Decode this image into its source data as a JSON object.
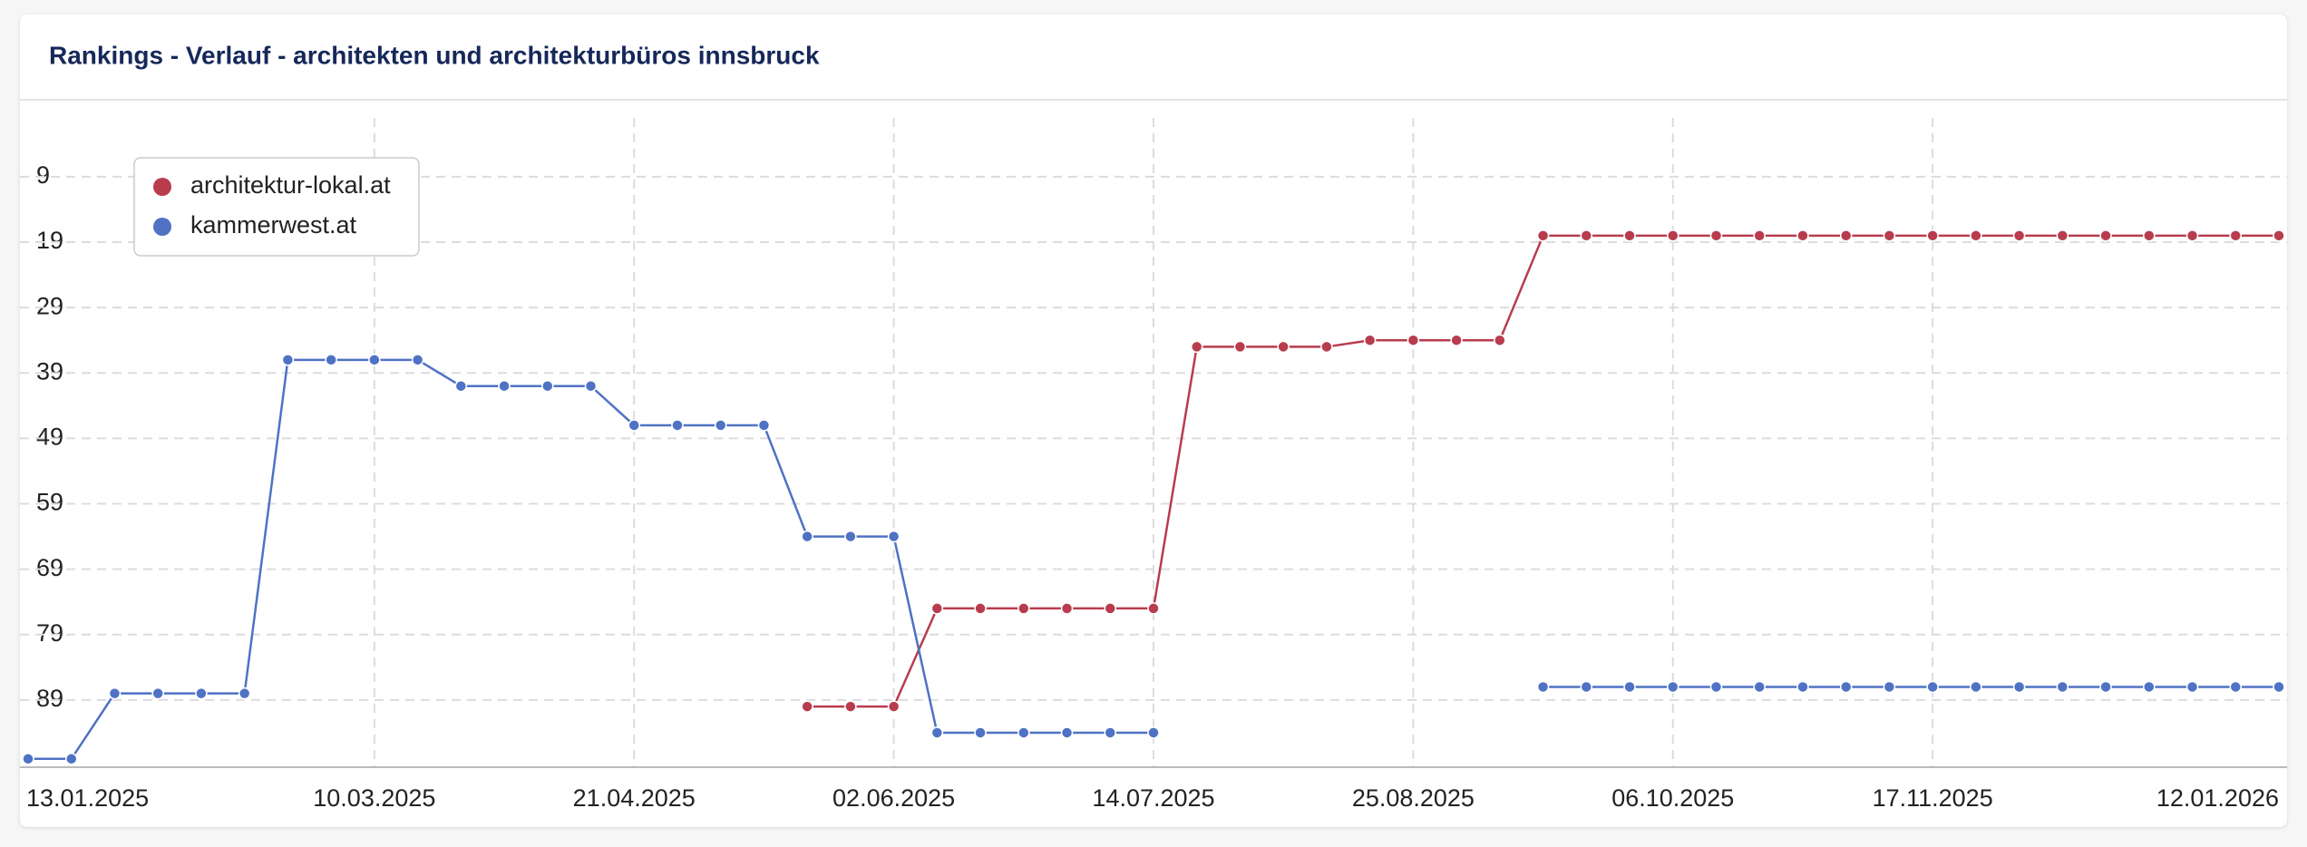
{
  "chart_data": {
    "type": "line",
    "title": "Rankings - Verlauf - architekten und architekturbüros innsbruck",
    "categories": [
      "13.01.2025",
      null,
      null,
      null,
      null,
      null,
      null,
      null,
      "10.03.2025",
      null,
      null,
      null,
      null,
      null,
      "21.04.2025",
      null,
      null,
      null,
      null,
      null,
      "02.06.2025",
      null,
      null,
      null,
      null,
      null,
      "14.07.2025",
      null,
      null,
      null,
      null,
      null,
      "25.08.2025",
      null,
      null,
      null,
      null,
      null,
      "06.10.2025",
      null,
      null,
      null,
      null,
      null,
      "17.11.2025",
      null,
      null,
      null,
      null,
      null,
      null,
      null,
      "12.01.2026"
    ],
    "series": [
      {
        "name": "architektur-lokal.at",
        "color": "#b83c4e",
        "values": [
          null,
          null,
          null,
          null,
          null,
          null,
          null,
          null,
          null,
          null,
          null,
          null,
          null,
          null,
          null,
          null,
          null,
          null,
          90,
          90,
          90,
          75,
          75,
          75,
          75,
          75,
          75,
          35,
          35,
          35,
          35,
          34,
          34,
          34,
          34,
          18,
          18,
          18,
          18,
          18,
          18,
          18,
          18,
          18,
          18,
          18,
          18,
          18,
          18,
          18,
          18,
          18,
          18
        ]
      },
      {
        "name": "kammerwest.at",
        "color": "#4f72c4",
        "values": [
          98,
          98,
          88,
          88,
          88,
          88,
          37,
          37,
          37,
          37,
          41,
          41,
          41,
          41,
          47,
          47,
          47,
          47,
          64,
          64,
          64,
          94,
          94,
          94,
          94,
          94,
          94,
          null,
          null,
          null,
          null,
          null,
          null,
          null,
          null,
          87,
          87,
          87,
          87,
          87,
          87,
          87,
          87,
          87,
          87,
          87,
          87,
          87,
          87,
          87,
          87,
          87,
          87
        ]
      }
    ],
    "ylim": [
      0,
      99
    ],
    "y_inverted": true,
    "yticks": [
      9,
      19,
      29,
      39,
      49,
      59,
      69,
      79,
      89
    ],
    "grid": true,
    "legend": "top-left"
  }
}
